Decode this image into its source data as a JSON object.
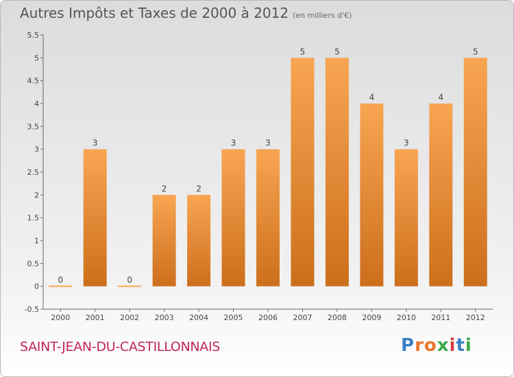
{
  "header": {
    "title": "Autres Impôts et Taxes de 2000 à 2012",
    "unit": "(en milliers d'€)"
  },
  "footer": {
    "commune": "SAINT-JEAN-DU-CASTILLONNAIS",
    "logo": "Proxiti"
  },
  "colors": {
    "bar_top": "#f8a552",
    "bar_bottom": "#cc6f1c",
    "commune": "#c0265a"
  },
  "chart_data": {
    "type": "bar",
    "title": "Autres Impôts et Taxes de 2000 à 2012",
    "subtitle": "(en milliers d'€)",
    "categories": [
      "2000",
      "2001",
      "2002",
      "2003",
      "2004",
      "2005",
      "2006",
      "2007",
      "2008",
      "2009",
      "2010",
      "2011",
      "2012"
    ],
    "values": [
      0,
      3,
      0,
      2,
      2,
      3,
      3,
      5,
      5,
      4,
      3,
      4,
      5
    ],
    "data_labels": [
      "0",
      "3",
      "0",
      "2",
      "2",
      "3",
      "3",
      "5",
      "5",
      "4",
      "3",
      "4",
      "5"
    ],
    "yticks": [
      "-0.5",
      "0",
      "0.5",
      "1",
      "1.5",
      "2",
      "2.5",
      "3",
      "3.5",
      "4",
      "4.5",
      "5",
      "5.5"
    ],
    "ylim": [
      -0.5,
      5.5
    ],
    "grid": false,
    "legend": "none"
  }
}
